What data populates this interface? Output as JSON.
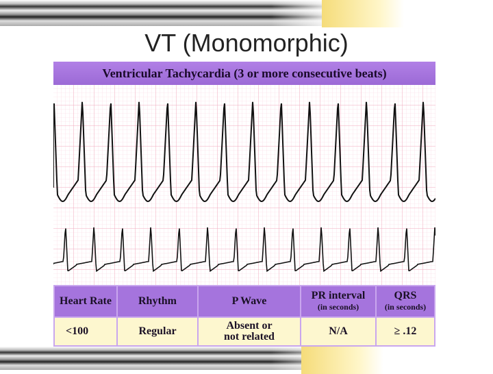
{
  "title": "VT (Monomorphic)",
  "strip_header": "Ventricular Tachycardia (3 or more consecutive beats)",
  "table": {
    "headers": [
      {
        "main": "Heart Rate",
        "sub": ""
      },
      {
        "main": "Rhythm",
        "sub": ""
      },
      {
        "main": "P Wave",
        "sub": ""
      },
      {
        "main": "PR interval",
        "sub": "(in seconds)"
      },
      {
        "main": "QRS",
        "sub": "(in seconds)"
      }
    ],
    "values": [
      "<100",
      "Regular",
      "Absent or not related",
      "N/A",
      "≥ .12"
    ]
  },
  "colors": {
    "header_purple": "#a574dd",
    "value_yellow": "#fdf7cf",
    "grid_pink": "#f4b8c8",
    "trace": "#111111"
  }
}
